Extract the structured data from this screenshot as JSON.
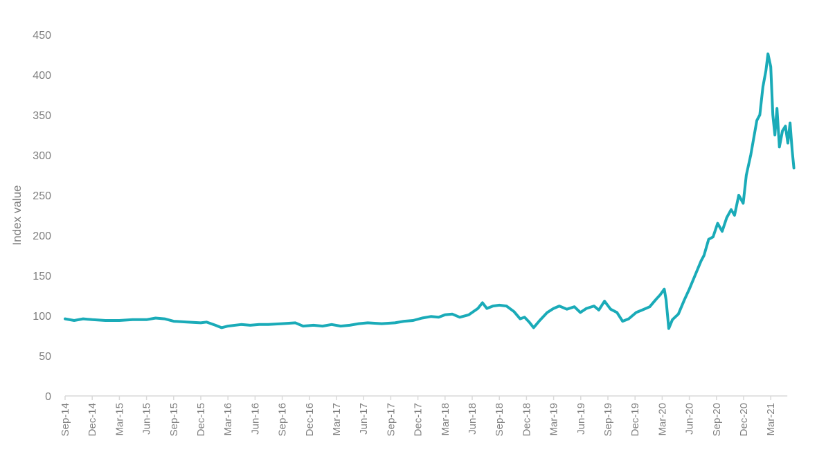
{
  "chart_data": {
    "type": "line",
    "title": "",
    "xlabel": "",
    "ylabel": "Index value",
    "ylim": [
      0,
      450
    ],
    "yticks": [
      0,
      50,
      100,
      150,
      200,
      250,
      300,
      350,
      400,
      450
    ],
    "xticks": [
      "Sep-14",
      "Dec-14",
      "Mar-15",
      "Jun-15",
      "Sep-15",
      "Dec-15",
      "Mar-16",
      "Jun-16",
      "Sep-16",
      "Dec-16",
      "Mar-17",
      "Jun-17",
      "Sep-17",
      "Dec-17",
      "Mar-18",
      "Jun-18",
      "Sep-18",
      "Dec-18",
      "Mar-19",
      "Jun-19",
      "Sep-19",
      "Dec-19",
      "Mar-20",
      "Jun-20",
      "Sep-20",
      "Dec-20",
      "Mar-21"
    ],
    "grid": false,
    "legend": "none",
    "line_color": "#1aabb8",
    "series": [
      {
        "points": [
          [
            "2014-09-01",
            96
          ],
          [
            "2014-10-01",
            94
          ],
          [
            "2014-11-01",
            96
          ],
          [
            "2014-12-01",
            95
          ],
          [
            "2015-01-15",
            94
          ],
          [
            "2015-03-01",
            94
          ],
          [
            "2015-04-15",
            95
          ],
          [
            "2015-06-01",
            95
          ],
          [
            "2015-07-01",
            97
          ],
          [
            "2015-08-01",
            96
          ],
          [
            "2015-09-01",
            93
          ],
          [
            "2015-10-15",
            92
          ],
          [
            "2015-12-01",
            91
          ],
          [
            "2015-12-20",
            92
          ],
          [
            "2016-01-20",
            88
          ],
          [
            "2016-02-10",
            85
          ],
          [
            "2016-03-01",
            87
          ],
          [
            "2016-04-15",
            89
          ],
          [
            "2016-05-15",
            88
          ],
          [
            "2016-06-15",
            89
          ],
          [
            "2016-07-15",
            89
          ],
          [
            "2016-09-01",
            90
          ],
          [
            "2016-10-15",
            91
          ],
          [
            "2016-11-10",
            87
          ],
          [
            "2016-12-15",
            88
          ],
          [
            "2017-01-15",
            87
          ],
          [
            "2017-02-15",
            89
          ],
          [
            "2017-03-15",
            87
          ],
          [
            "2017-04-15",
            88
          ],
          [
            "2017-05-15",
            90
          ],
          [
            "2017-06-15",
            91
          ],
          [
            "2017-08-01",
            90
          ],
          [
            "2017-09-15",
            91
          ],
          [
            "2017-10-15",
            93
          ],
          [
            "2017-11-15",
            94
          ],
          [
            "2017-12-15",
            97
          ],
          [
            "2018-01-15",
            99
          ],
          [
            "2018-02-10",
            98
          ],
          [
            "2018-03-01",
            101
          ],
          [
            "2018-03-25",
            102
          ],
          [
            "2018-04-20",
            98
          ],
          [
            "2018-05-20",
            101
          ],
          [
            "2018-06-20",
            109
          ],
          [
            "2018-07-05",
            116
          ],
          [
            "2018-07-20",
            109
          ],
          [
            "2018-08-10",
            112
          ],
          [
            "2018-09-01",
            113
          ],
          [
            "2018-09-25",
            112
          ],
          [
            "2018-10-20",
            105
          ],
          [
            "2018-11-10",
            96
          ],
          [
            "2018-11-25",
            98
          ],
          [
            "2018-12-10",
            92
          ],
          [
            "2018-12-25",
            85
          ],
          [
            "2019-01-15",
            94
          ],
          [
            "2019-02-10",
            104
          ],
          [
            "2019-03-01",
            109
          ],
          [
            "2019-03-20",
            112
          ],
          [
            "2019-04-15",
            108
          ],
          [
            "2019-05-10",
            111
          ],
          [
            "2019-05-30",
            104
          ],
          [
            "2019-06-20",
            109
          ],
          [
            "2019-07-15",
            112
          ],
          [
            "2019-08-01",
            107
          ],
          [
            "2019-08-20",
            118
          ],
          [
            "2019-09-10",
            108
          ],
          [
            "2019-10-01",
            104
          ],
          [
            "2019-10-20",
            93
          ],
          [
            "2019-11-10",
            96
          ],
          [
            "2019-12-05",
            104
          ],
          [
            "2019-12-25",
            107
          ],
          [
            "2020-01-20",
            111
          ],
          [
            "2020-02-10",
            120
          ],
          [
            "2020-02-25",
            126
          ],
          [
            "2020-03-08",
            133
          ],
          [
            "2020-03-14",
            120
          ],
          [
            "2020-03-23",
            84
          ],
          [
            "2020-04-05",
            95
          ],
          [
            "2020-04-25",
            102
          ],
          [
            "2020-05-15",
            120
          ],
          [
            "2020-06-01",
            133
          ],
          [
            "2020-06-20",
            150
          ],
          [
            "2020-07-10",
            168
          ],
          [
            "2020-07-20",
            175
          ],
          [
            "2020-08-05",
            195
          ],
          [
            "2020-08-20",
            198
          ],
          [
            "2020-09-05",
            215
          ],
          [
            "2020-09-20",
            205
          ],
          [
            "2020-10-05",
            222
          ],
          [
            "2020-10-20",
            232
          ],
          [
            "2020-11-01",
            225
          ],
          [
            "2020-11-15",
            250
          ],
          [
            "2020-11-30",
            240
          ],
          [
            "2020-12-10",
            275
          ],
          [
            "2020-12-25",
            300
          ],
          [
            "2021-01-05",
            322
          ],
          [
            "2021-01-15",
            343
          ],
          [
            "2021-01-25",
            350
          ],
          [
            "2021-02-05",
            385
          ],
          [
            "2021-02-15",
            405
          ],
          [
            "2021-02-22",
            426
          ],
          [
            "2021-03-01",
            410
          ],
          [
            "2021-03-08",
            350
          ],
          [
            "2021-03-15",
            325
          ],
          [
            "2021-03-22",
            358
          ],
          [
            "2021-03-30",
            310
          ],
          [
            "2021-04-10",
            330
          ],
          [
            "2021-04-20",
            336
          ],
          [
            "2021-04-28",
            315
          ],
          [
            "2021-05-05",
            340
          ],
          [
            "2021-05-12",
            306
          ],
          [
            "2021-05-18",
            284
          ]
        ]
      }
    ]
  }
}
